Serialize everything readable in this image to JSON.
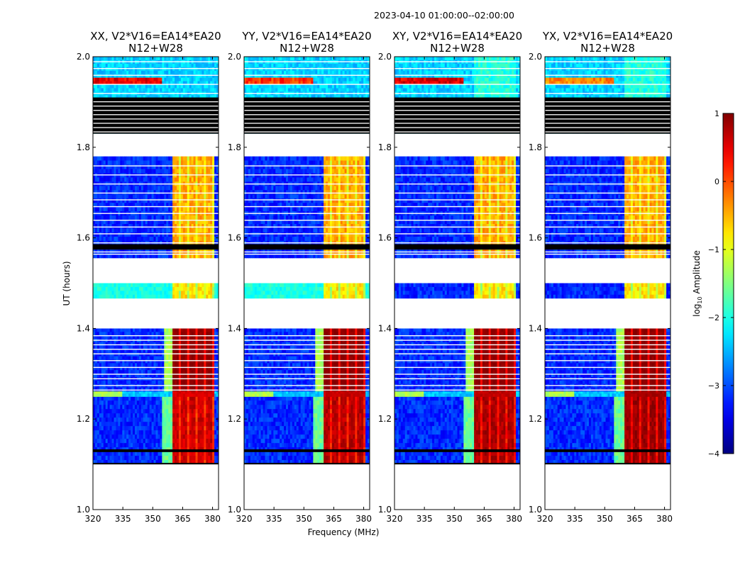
{
  "figure": {
    "date_range": "2023-04-10  01:00:00--02:00:00",
    "xlabel": "Frequency (MHz)",
    "ylabel": "UT (hours)"
  },
  "colorbar": {
    "label_prefix": "log",
    "label_sub": "10",
    "label_suffix": " Amplitude",
    "range": [
      -4,
      1
    ],
    "ticks": [
      "1",
      "0",
      "−1",
      "−2",
      "−3",
      "−4"
    ],
    "tick_values": [
      1,
      0,
      -1,
      -2,
      -3,
      -4
    ],
    "colormap": "jet"
  },
  "chart_data": {
    "type": "heatmap",
    "title": "2023-04-10  01:00:00--02:00:00",
    "xlabel": "Frequency (MHz)",
    "ylabel": "UT (hours)",
    "xlim": [
      320,
      383
    ],
    "ylim": [
      1.0,
      2.0
    ],
    "x_ticks": [
      320,
      335,
      350,
      365,
      380
    ],
    "x_tick_labels": [
      "320",
      "335",
      "350",
      "365",
      "380"
    ],
    "y_ticks": [
      1.0,
      1.2,
      1.4,
      1.6,
      1.8,
      2.0
    ],
    "y_tick_labels": [
      "1.0",
      "1.2",
      "1.4",
      "1.6",
      "1.8",
      "2.0"
    ],
    "panels": [
      {
        "polarization": "XX",
        "title_line1": "XX, V2*V16=EA14*EA20",
        "title_line2": "N12+W28",
        "rfi_level": 0.15,
        "strong_min": 0.45
      },
      {
        "polarization": "YY",
        "title_line1": "YY, V2*V16=EA14*EA20",
        "title_line2": "N12+W28",
        "rfi_level": -0.2,
        "strong_min": 0.55
      },
      {
        "polarization": "XY",
        "title_line1": "XY, V2*V16=EA14*EA20",
        "title_line2": "N12+W28",
        "rfi_level": 0.2,
        "strong_min": 0.6
      },
      {
        "polarization": "YX",
        "title_line1": "YX, V2*V16=EA14*EA20",
        "title_line2": "N12+W28",
        "rfi_level": -0.6,
        "strong_min": 0.7
      }
    ],
    "signal_channels_MHz": [
      [
        360,
        381
      ]
    ],
    "flagged_time_ranges_hours": [
      [
        1.0,
        1.1
      ],
      [
        1.473,
        1.5
      ],
      [
        1.53,
        1.556
      ],
      [
        1.78,
        1.83
      ]
    ],
    "value_range": [
      -4,
      1
    ]
  }
}
